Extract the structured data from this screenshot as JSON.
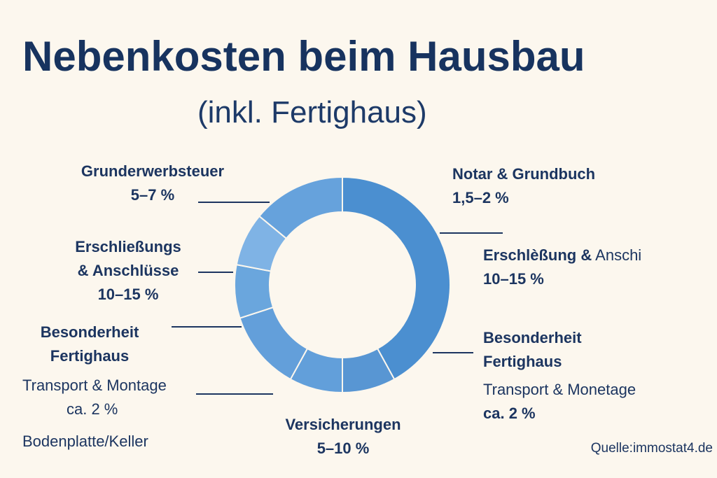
{
  "title": "Nebenkosten beim Hausbau",
  "subtitle": "(inkl. Fertighaus)",
  "source": "Quelle:immostat4.de",
  "colors": {
    "ring_dark": "#4b8fd0",
    "ring_mid": "#629fda",
    "ring_light": "#7fb3e5",
    "text": "#1c3560",
    "background": "#fcf7ee"
  },
  "chart_data": {
    "type": "pie",
    "donut": true,
    "segments": [
      {
        "value": 42,
        "color": "#4b8fd0"
      },
      {
        "value": 8,
        "color": "#5896d3"
      },
      {
        "value": 8,
        "color": "#629fda"
      },
      {
        "value": 12,
        "color": "#639fda"
      },
      {
        "value": 8,
        "color": "#6aa6dd"
      },
      {
        "value": 8,
        "color": "#7fb3e5"
      },
      {
        "value": 14,
        "color": "#66a2dc"
      }
    ],
    "labels": [
      {
        "name": "Grunderwerbsteuer",
        "value": "5–7 %"
      },
      {
        "name": "Notar & Grundbuch",
        "value": "1,5–2 %"
      },
      {
        "name_line1": "Erschließungs",
        "name_line2": "& Anschlüsse",
        "value": "10–15 %"
      },
      {
        "name_bold": "Erschlèßung &",
        "name_rest": "Anschi",
        "value": "10–15 %"
      },
      {
        "name_line1": "Besonderheit",
        "name_line2": "Fertighaus",
        "detail": "Transport & Montage",
        "value": "ca. 2 %",
        "extra": "Bodenplatte/Keller"
      },
      {
        "name_line1": "Besonderheit",
        "name_line2": "Fertighaus",
        "detail": "Transport & Monetage",
        "value": "ca. 2 %"
      },
      {
        "name": "Versicherungen",
        "value": "5–10 %"
      }
    ]
  }
}
